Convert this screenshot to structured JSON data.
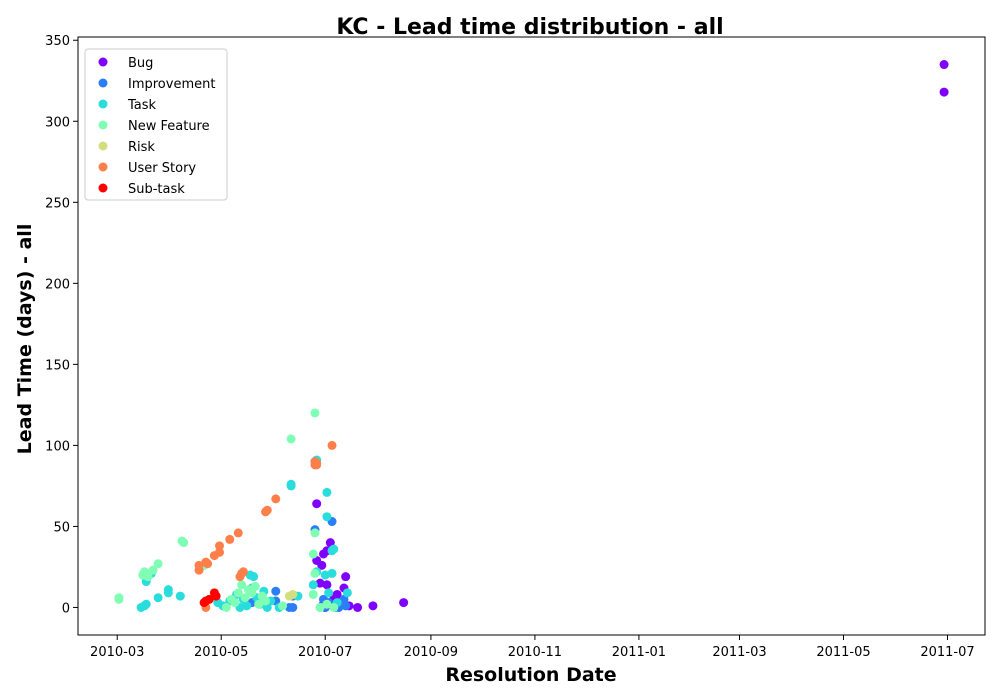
{
  "chart_data": {
    "type": "scatter",
    "title": "KC - Lead time distribution - all",
    "xlabel": "Resolution Date",
    "ylabel": "Lead Time (days) - all",
    "xlim": [
      "2010-02-06",
      "2011-07-23"
    ],
    "ylim": [
      -17,
      352
    ],
    "x_ticks": [
      "2010-03-01",
      "2010-05-01",
      "2010-07-01",
      "2010-09-01",
      "2010-11-01",
      "2011-01-01",
      "2011-03-01",
      "2011-05-01",
      "2011-07-01"
    ],
    "x_tick_labels": [
      "2010-03",
      "2010-05",
      "2010-07",
      "2010-09",
      "2010-11",
      "2011-01",
      "2011-03",
      "2011-05",
      "2011-07"
    ],
    "y_ticks": [
      0,
      50,
      100,
      150,
      200,
      250,
      300,
      350
    ],
    "y_tick_labels": [
      "0",
      "50",
      "100",
      "150",
      "200",
      "250",
      "300",
      "350"
    ],
    "grid": false,
    "legend_position": "top-left",
    "series": [
      {
        "name": "Bug",
        "color": "#8000ff",
        "points": [
          [
            "2011-06-29",
            335
          ],
          [
            "2011-06-29",
            318
          ],
          [
            "2010-06-26",
            64
          ],
          [
            "2010-07-04",
            40
          ],
          [
            "2010-06-30",
            33
          ],
          [
            "2010-07-02",
            35
          ],
          [
            "2010-06-26",
            29
          ],
          [
            "2010-06-29",
            26
          ],
          [
            "2010-06-28",
            15
          ],
          [
            "2010-07-13",
            19
          ],
          [
            "2010-07-12",
            12
          ],
          [
            "2010-07-02",
            14
          ],
          [
            "2010-07-06",
            5
          ],
          [
            "2010-07-10",
            3
          ],
          [
            "2010-07-15",
            1
          ],
          [
            "2010-07-20",
            0
          ],
          [
            "2010-07-29",
            1
          ],
          [
            "2010-08-16",
            3
          ],
          [
            "2010-06-30",
            2
          ],
          [
            "2010-07-01",
            0
          ],
          [
            "2010-07-08",
            8
          ]
        ]
      },
      {
        "name": "Improvement",
        "color": "#2c7ef7",
        "points": [
          [
            "2010-06-25",
            48
          ],
          [
            "2010-07-05",
            53
          ],
          [
            "2010-06-25",
            90
          ],
          [
            "2010-06-02",
            10
          ],
          [
            "2010-06-02",
            4
          ],
          [
            "2010-06-10",
            0
          ],
          [
            "2010-06-12",
            0
          ],
          [
            "2010-07-01",
            0
          ],
          [
            "2010-07-03",
            3
          ],
          [
            "2010-07-07",
            0
          ],
          [
            "2010-07-11",
            2
          ],
          [
            "2010-07-12",
            5
          ],
          [
            "2010-07-13",
            1
          ],
          [
            "2010-06-30",
            5
          ],
          [
            "2010-06-12",
            7
          ],
          [
            "2010-07-09",
            0
          ],
          [
            "2010-05-19",
            3
          ]
        ]
      },
      {
        "name": "Task",
        "color": "#2adddd",
        "points": [
          [
            "2010-06-26",
            91
          ],
          [
            "2010-06-11",
            76
          ],
          [
            "2010-06-11",
            75
          ],
          [
            "2010-07-02",
            71
          ],
          [
            "2010-07-02",
            56
          ],
          [
            "2010-07-06",
            36
          ],
          [
            "2010-07-05",
            35
          ],
          [
            "2010-07-05",
            21
          ],
          [
            "2010-07-01",
            20
          ],
          [
            "2010-03-21",
            21
          ],
          [
            "2010-03-18",
            16
          ],
          [
            "2010-03-25",
            6
          ],
          [
            "2010-03-31",
            11
          ],
          [
            "2010-03-31",
            9
          ],
          [
            "2010-04-07",
            7
          ],
          [
            "2010-03-15",
            0
          ],
          [
            "2010-03-17",
            1
          ],
          [
            "2010-03-18",
            2
          ],
          [
            "2010-04-29",
            3
          ],
          [
            "2010-05-02",
            1
          ],
          [
            "2010-05-06",
            4
          ],
          [
            "2010-05-10",
            8
          ],
          [
            "2010-05-12",
            0
          ],
          [
            "2010-05-14",
            5
          ],
          [
            "2010-05-18",
            20
          ],
          [
            "2010-05-20",
            19
          ],
          [
            "2010-05-22",
            6
          ],
          [
            "2010-05-24",
            2
          ],
          [
            "2010-05-26",
            10
          ],
          [
            "2010-05-28",
            0
          ],
          [
            "2010-05-30",
            4
          ],
          [
            "2010-06-04",
            0
          ],
          [
            "2010-06-15",
            7
          ],
          [
            "2010-06-24",
            14
          ],
          [
            "2010-06-26",
            22
          ],
          [
            "2010-06-28",
            0
          ],
          [
            "2010-07-03",
            9
          ],
          [
            "2010-07-08",
            3
          ],
          [
            "2010-07-14",
            9
          ],
          [
            "2010-05-16",
            1
          ],
          [
            "2010-05-19",
            12
          ]
        ]
      },
      {
        "name": "New Feature",
        "color": "#80ffb4",
        "points": [
          [
            "2010-06-25",
            120
          ],
          [
            "2010-06-11",
            104
          ],
          [
            "2010-04-08",
            41
          ],
          [
            "2010-04-09",
            40
          ],
          [
            "2010-03-25",
            27
          ],
          [
            "2010-03-16",
            20
          ],
          [
            "2010-03-17",
            22
          ],
          [
            "2010-03-19",
            19
          ],
          [
            "2010-03-22",
            23
          ],
          [
            "2010-03-02",
            5
          ],
          [
            "2010-03-02",
            6
          ],
          [
            "2010-04-21",
            26
          ],
          [
            "2010-06-25",
            46
          ],
          [
            "2010-06-24",
            33
          ],
          [
            "2010-06-25",
            21
          ],
          [
            "2010-06-24",
            8
          ],
          [
            "2010-05-04",
            0
          ],
          [
            "2010-05-09",
            3
          ],
          [
            "2010-05-11",
            9
          ],
          [
            "2010-05-13",
            14
          ],
          [
            "2010-05-15",
            6
          ],
          [
            "2010-05-17",
            11
          ],
          [
            "2010-05-19",
            9
          ],
          [
            "2010-05-21",
            13
          ],
          [
            "2010-05-23",
            2
          ],
          [
            "2010-05-25",
            7
          ],
          [
            "2010-06-06",
            1
          ],
          [
            "2010-06-28",
            0
          ],
          [
            "2010-07-02",
            2
          ],
          [
            "2010-07-06",
            0
          ],
          [
            "2010-05-07",
            5
          ],
          [
            "2010-05-27",
            4
          ]
        ]
      },
      {
        "name": "Risk",
        "color": "#d4dd80",
        "points": [
          [
            "2010-06-12",
            8
          ],
          [
            "2010-06-10",
            7
          ]
        ]
      },
      {
        "name": "User Story",
        "color": "#ff7f4a",
        "points": [
          [
            "2010-07-05",
            100
          ],
          [
            "2010-06-25",
            90
          ],
          [
            "2010-06-25",
            88
          ],
          [
            "2010-06-26",
            88
          ],
          [
            "2010-06-26",
            89
          ],
          [
            "2010-06-02",
            67
          ],
          [
            "2010-05-28",
            60
          ],
          [
            "2010-05-27",
            59
          ],
          [
            "2010-05-11",
            46
          ],
          [
            "2010-05-06",
            42
          ],
          [
            "2010-04-30",
            38
          ],
          [
            "2010-04-30",
            34
          ],
          [
            "2010-04-27",
            32
          ],
          [
            "2010-04-23",
            27
          ],
          [
            "2010-04-22",
            28
          ],
          [
            "2010-04-18",
            23
          ],
          [
            "2010-04-18",
            26
          ],
          [
            "2010-05-12",
            19
          ],
          [
            "2010-05-14",
            22
          ],
          [
            "2010-05-13",
            21
          ],
          [
            "2010-04-22",
            0
          ]
        ]
      },
      {
        "name": "Sub-task",
        "color": "#ff0000",
        "points": [
          [
            "2010-04-27",
            9
          ],
          [
            "2010-04-28",
            7
          ],
          [
            "2010-04-22",
            4
          ],
          [
            "2010-04-21",
            3
          ],
          [
            "2010-04-24",
            5
          ]
        ]
      }
    ]
  }
}
